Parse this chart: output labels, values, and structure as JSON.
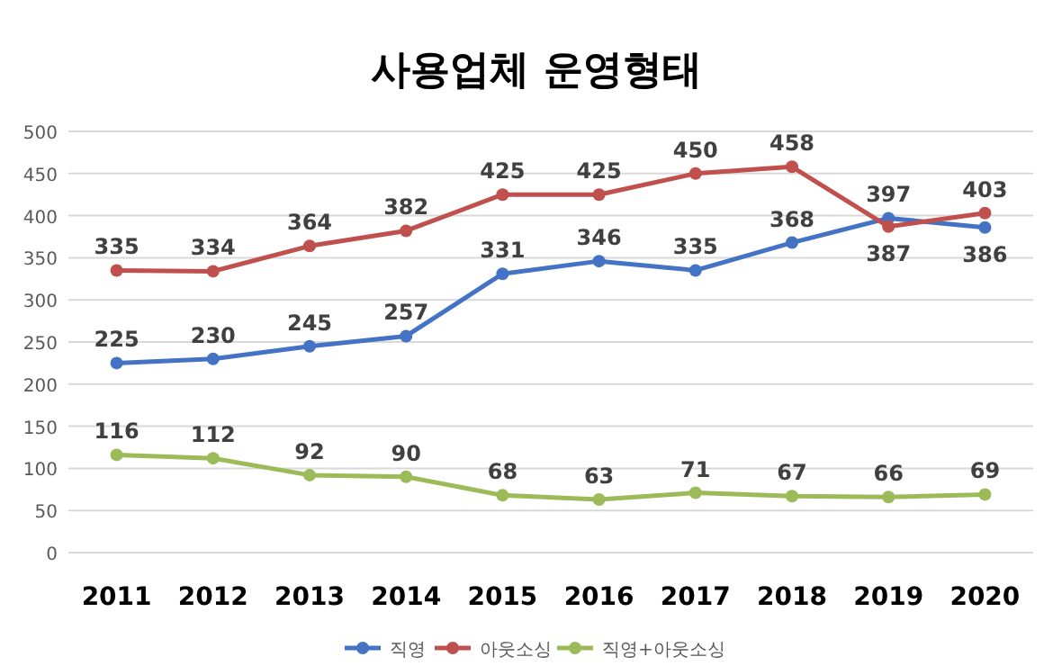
{
  "chart_data": {
    "type": "line",
    "title": "사용업체 운영형태",
    "categories": [
      "2011",
      "2012",
      "2013",
      "2014",
      "2015",
      "2016",
      "2017",
      "2018",
      "2019",
      "2020"
    ],
    "series": [
      {
        "name": "직영",
        "color": "#4472c4",
        "values": [
          225,
          230,
          245,
          257,
          331,
          346,
          335,
          368,
          397,
          386
        ]
      },
      {
        "name": "아웃소싱",
        "color": "#c0504d",
        "values": [
          335,
          334,
          364,
          382,
          425,
          425,
          450,
          458,
          387,
          403
        ]
      },
      {
        "name": "직영+아웃소싱",
        "color": "#9bbb59",
        "values": [
          116,
          112,
          92,
          90,
          68,
          63,
          71,
          67,
          66,
          69
        ]
      }
    ],
    "ylim": [
      0,
      500
    ],
    "yticks": [
      0,
      50,
      100,
      150,
      200,
      250,
      300,
      350,
      400,
      450,
      500
    ],
    "grid": "y",
    "legend": "bottom",
    "marker": "circle",
    "line_style": "solid",
    "data_labels": true
  }
}
